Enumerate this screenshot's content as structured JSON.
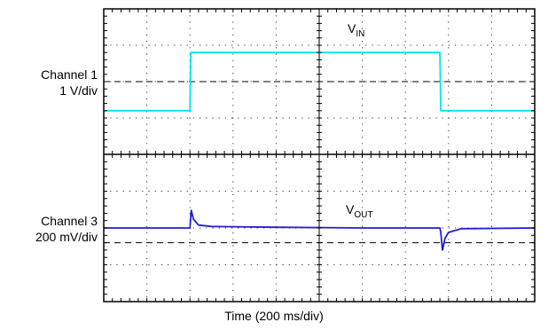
{
  "chart_data": {
    "type": "line",
    "xlabel": "Time (200 ms/div)",
    "x_divisions": 10,
    "grid": "dotted",
    "channels": [
      {
        "channel_label": "Channel 1",
        "scale_label": "1 V/div",
        "trace_label_main": "V",
        "trace_label_sub": "IN",
        "color": "#00e5ee",
        "units_per_div": 1,
        "ylim": [
          -2.5,
          2.5
        ],
        "reference_level": 0,
        "x": [
          0,
          2,
          2.02,
          7.8,
          7.82,
          10
        ],
        "y": [
          -1.0,
          -1.0,
          1.0,
          1.0,
          -1.0,
          -1.0
        ]
      },
      {
        "channel_label": "Channel 3",
        "scale_label": "200 mV/div",
        "trace_label_main": "V",
        "trace_label_sub": "OUT",
        "color": "#1f1fd6",
        "units_per_div": 0.2,
        "ylim": [
          -0.5,
          0.5
        ],
        "reference_level": -0.1,
        "x": [
          0,
          2,
          2.03,
          2.08,
          2.2,
          2.5,
          4,
          6,
          7.8,
          7.82,
          7.86,
          7.92,
          8.0,
          8.3,
          10
        ],
        "y": [
          0,
          0,
          0.12,
          0.06,
          0.02,
          0.01,
          0.005,
          0.0,
          0.0,
          -0.03,
          -0.15,
          -0.07,
          -0.03,
          -0.005,
          0
        ]
      }
    ]
  }
}
